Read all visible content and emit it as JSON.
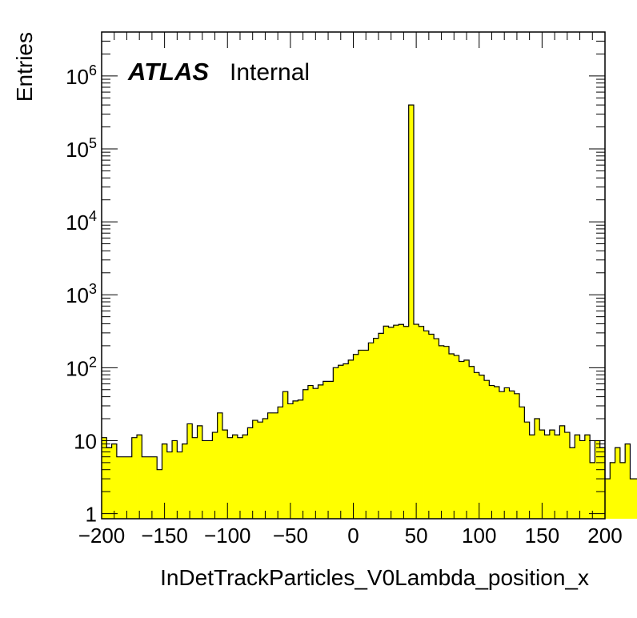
{
  "chart_data": {
    "type": "bar",
    "histogram": true,
    "xlabel": "InDetTrackParticles_V0Lambda_position_x",
    "ylabel": "Entries",
    "xlim": [
      -200,
      200
    ],
    "ylim": [
      0.85,
      4000000
    ],
    "yscale": "log",
    "grid": false,
    "bin_width": 4,
    "x_ticks": [
      "−200",
      "−150",
      "−100",
      "−50",
      "0",
      "50",
      "100",
      "150",
      "200"
    ],
    "x_tick_values": [
      -200,
      -150,
      -100,
      -50,
      0,
      50,
      100,
      150,
      200
    ],
    "y_ticks": [
      {
        "value": 1,
        "base": "1",
        "exp": ""
      },
      {
        "value": 10,
        "base": "10",
        "exp": ""
      },
      {
        "value": 100,
        "base": "10",
        "exp": "2"
      },
      {
        "value": 1000,
        "base": "10",
        "exp": "3"
      },
      {
        "value": 10000,
        "base": "10",
        "exp": "4"
      },
      {
        "value": 100000,
        "base": "10",
        "exp": "5"
      },
      {
        "value": 1000000,
        "base": "10",
        "exp": "6"
      }
    ],
    "annotations": {
      "experiment": "ATLAS",
      "status": "Internal"
    },
    "fill_color": "#ffff00",
    "line_color": "#000000",
    "values": [
      11,
      8,
      9,
      6,
      6,
      6,
      11,
      12,
      6,
      6,
      6,
      4,
      9,
      7,
      10,
      7,
      9,
      17,
      11,
      16,
      10,
      10,
      13,
      24,
      14,
      11,
      12,
      11,
      12,
      15,
      19,
      18,
      20,
      24,
      24,
      29,
      47,
      32,
      35,
      36,
      50,
      57,
      52,
      58,
      65,
      65,
      100,
      108,
      113,
      127,
      152,
      174,
      174,
      219,
      253,
      296,
      372,
      358,
      383,
      392,
      368,
      400000,
      394,
      368,
      320,
      288,
      250,
      200,
      196,
      155,
      147,
      122,
      127,
      104,
      86,
      79,
      67,
      57,
      55,
      47,
      53,
      48,
      44,
      29,
      18,
      12,
      20,
      14,
      12,
      14,
      12,
      16,
      13,
      8,
      12,
      10,
      12,
      5,
      10,
      8,
      3,
      5,
      8,
      5,
      9,
      3,
      3,
      3,
      9,
      9,
      8,
      2,
      5
    ]
  }
}
